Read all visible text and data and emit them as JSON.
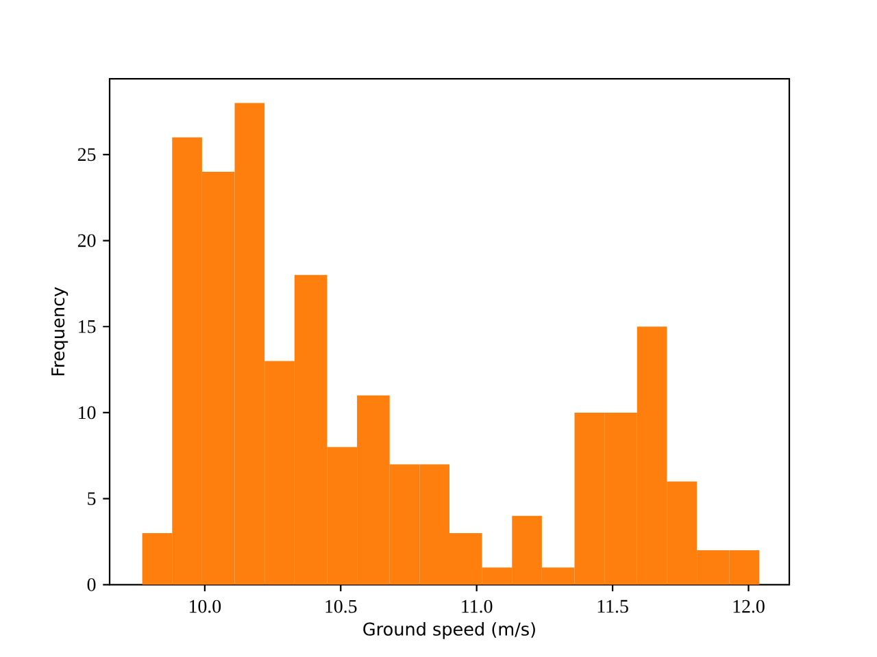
{
  "chart_data": {
    "type": "histogram",
    "xlabel": "Ground speed (m/s)",
    "ylabel": "Frequency",
    "bins": [
      9.77,
      9.88,
      9.99,
      10.11,
      10.22,
      10.33,
      10.45,
      10.56,
      10.68,
      10.79,
      10.9,
      11.02,
      11.13,
      11.24,
      11.36,
      11.47,
      11.59,
      11.7,
      11.81,
      11.93,
      12.04
    ],
    "values": [
      3,
      26,
      24,
      28,
      13,
      18,
      8,
      11,
      7,
      7,
      3,
      1,
      4,
      1,
      10,
      10,
      15,
      6,
      2,
      2
    ],
    "color": "#ff7f0e",
    "xlim": [
      9.65,
      12.15
    ],
    "ylim": [
      0,
      29.4
    ],
    "xticks": [
      {
        "value": 10,
        "label": "10.0"
      },
      10.5,
      {
        "value": 11,
        "label": "11.0"
      },
      11.5,
      {
        "value": 12,
        "label": "12.0"
      }
    ],
    "yticks": [
      0,
      5,
      10,
      15,
      20,
      25
    ]
  }
}
